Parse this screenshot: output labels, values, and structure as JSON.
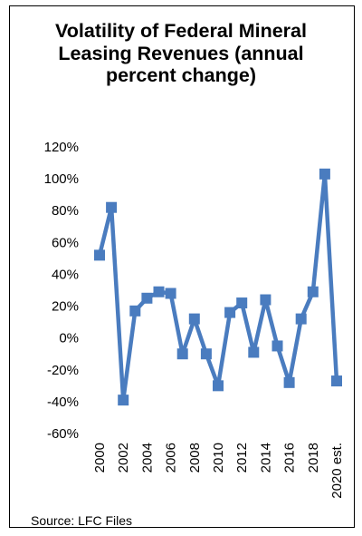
{
  "chart_data": {
    "type": "line",
    "title": "Volatility of Federal Mineral Leasing Revenues (annual percent change)",
    "source": "Source: LFC Files",
    "x": [
      "2000",
      "2001",
      "2002",
      "2003",
      "2004",
      "2005",
      "2006",
      "2007",
      "2008",
      "2009",
      "2010",
      "2011",
      "2012",
      "2013",
      "2014",
      "2015",
      "2016",
      "2017",
      "2018",
      "2019",
      "2020 est."
    ],
    "x_tick_labels": [
      "2000",
      "2002",
      "2004",
      "2006",
      "2008",
      "2010",
      "2012",
      "2014",
      "2016",
      "2018",
      "2020 est."
    ],
    "series": [
      {
        "values": [
          52,
          82,
          -39,
          17,
          25,
          29,
          28,
          -10,
          12,
          -10,
          -30,
          16,
          22,
          -9,
          24,
          -5,
          -28,
          12,
          29,
          103,
          -27
        ]
      }
    ],
    "ylim": [
      -60,
      120
    ],
    "y_ticks": [
      -60,
      -40,
      -20,
      0,
      20,
      40,
      60,
      80,
      100,
      120
    ],
    "y_tick_labels": [
      "-60%",
      "-40%",
      "-20%",
      "0%",
      "20%",
      "40%",
      "60%",
      "80%",
      "100%",
      "120%"
    ],
    "grid": false,
    "legend": "none",
    "color": "#4a7cbf"
  }
}
